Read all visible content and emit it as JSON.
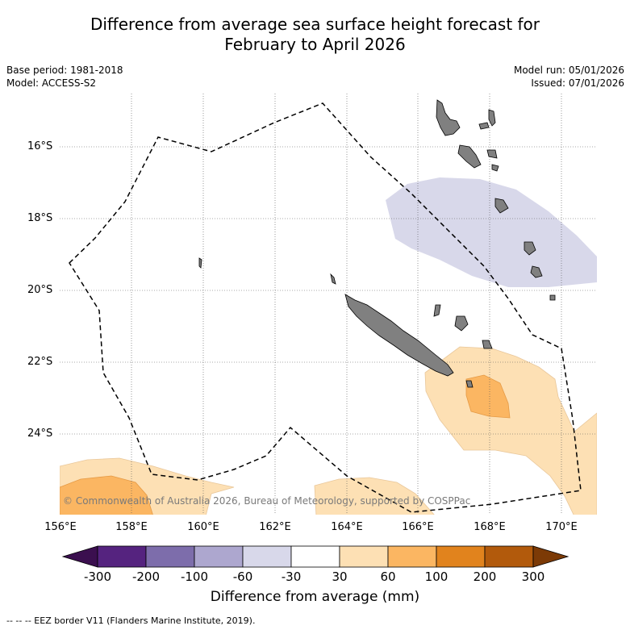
{
  "title_line1": "Difference from average sea surface height forecast for",
  "title_line2": "February to April 2026",
  "base_period": "Base period: 1981-2018",
  "model": "Model: ACCESS-S2",
  "model_run": "Model run: 05/01/2026",
  "issued": "Issued: 07/01/2026",
  "lat_labels": [
    "16°S",
    "18°S",
    "20°S",
    "22°S",
    "24°S"
  ],
  "lon_labels": [
    "156°E",
    "158°E",
    "160°E",
    "162°E",
    "164°E",
    "166°E",
    "168°E",
    "170°E"
  ],
  "colorbar": {
    "ticks": [
      "-300",
      "-200",
      "-100",
      "-60",
      "-30",
      "30",
      "60",
      "100",
      "200",
      "300"
    ],
    "colors": [
      "#3b0f4f",
      "#55237f",
      "#7d6dab",
      "#ada7cf",
      "#d8d8ea",
      "#ffffff",
      "#fde0b4",
      "#fbb662",
      "#e1831d",
      "#b25a0c",
      "#7c3a06"
    ],
    "label": "Difference from average (mm)"
  },
  "credit": "© Commonwealth of Australia 2026, Bureau of Meteorology, supported by COSPPac",
  "footer": "--  --  -- EEZ border V11 (Flanders Marine Institute, 2019)."
}
